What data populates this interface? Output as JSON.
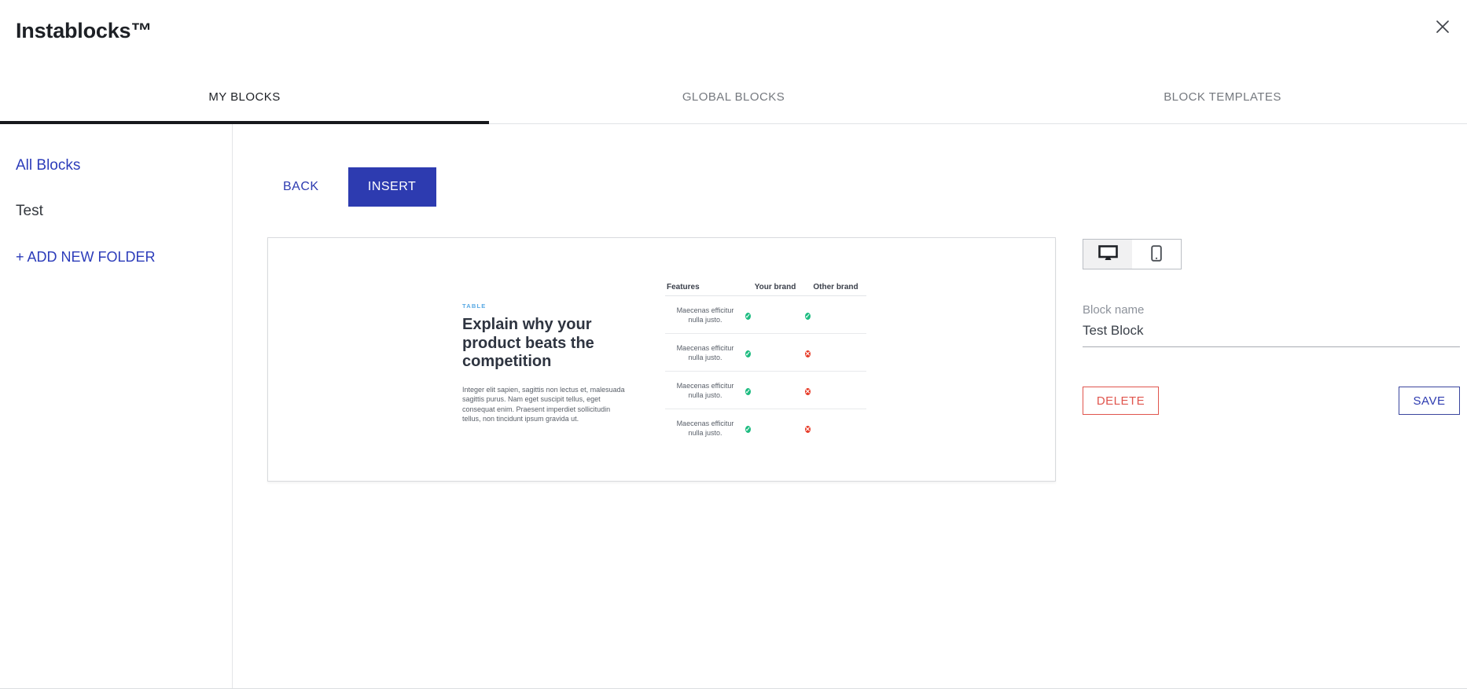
{
  "modal": {
    "title": "Instablocks™"
  },
  "tabs": [
    {
      "label": "MY BLOCKS",
      "active": true
    },
    {
      "label": "GLOBAL BLOCKS",
      "active": false
    },
    {
      "label": "BLOCK TEMPLATES",
      "active": false
    }
  ],
  "sidebar": {
    "items": [
      {
        "label": "All Blocks"
      },
      {
        "label": "Test"
      },
      {
        "label": "+ ADD NEW FOLDER"
      }
    ]
  },
  "toolbar": {
    "back_label": "BACK",
    "insert_label": "INSERT"
  },
  "preview": {
    "eyebrow": "TABLE",
    "heading": "Explain why your product beats the competition",
    "paragraph": "Integer elit sapien, sagittis non lectus et, malesuada sagittis purus. Nam eget suscipit tellus, eget consequat enim. Praesent imperdiet sollicitudin tellus, non tincidunt ipsum gravida ut.",
    "table": {
      "headers": [
        "Features",
        "Your brand",
        "Other brand"
      ],
      "rows": [
        {
          "feature": "Maecenas efficitur nulla justo.",
          "your_brand": "check",
          "other_brand": "check"
        },
        {
          "feature": "Maecenas efficitur nulla justo.",
          "your_brand": "check",
          "other_brand": "cross"
        },
        {
          "feature": "Maecenas efficitur nulla justo.",
          "your_brand": "check",
          "other_brand": "cross"
        },
        {
          "feature": "Maecenas efficitur nulla justo.",
          "your_brand": "check",
          "other_brand": "cross"
        }
      ]
    }
  },
  "inspector": {
    "device_toggle": {
      "active": "desktop"
    },
    "block_name_label": "Block name",
    "block_name_value": "Test Block",
    "delete_label": "DELETE",
    "save_label": "SAVE"
  },
  "colors": {
    "accent_blue": "#2d3bb0",
    "link_blue": "#2c3cba",
    "delete_red": "#e0554d",
    "check_green": "#1ebc81",
    "cross_red": "#e73b28",
    "eyebrow_blue": "#58a9e4",
    "tab_active": "#1d2025",
    "tab_inactive": "#75797f"
  }
}
